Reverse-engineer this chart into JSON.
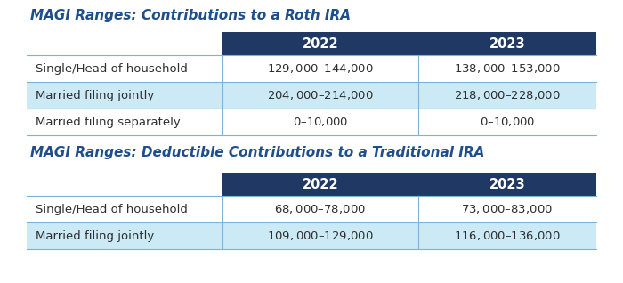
{
  "title1": "MAGI Ranges: Contributions to a Roth IRA",
  "title2": "MAGI Ranges: Deductible Contributions to a Traditional IRA",
  "title_color": "#1f4e8c",
  "header_bg": "#1f3864",
  "header_text_color": "#ffffff",
  "header_labels": [
    "2022",
    "2023"
  ],
  "border_color": "#7fb3d3",
  "text_color": "#2e2e2e",
  "table1_rows": [
    [
      "Single/Head of household",
      "$1'29,000–$144,000",
      "$138,000–$153,000"
    ],
    [
      "Married filing jointly",
      "$204,000–$214,000",
      "$218,000–$228,000"
    ],
    [
      "Married filing separately",
      "$0–$10,000",
      "$0–$10,000"
    ]
  ],
  "table1_row_colors": [
    "#ffffff",
    "#cceaf5",
    "#ffffff"
  ],
  "table2_rows": [
    [
      "Single/Head of household",
      "$68,000–$78,000",
      "$73,000–$83,000"
    ],
    [
      "Married filing jointly",
      "$109,000–$129,000",
      "$116,000–$136,000"
    ]
  ],
  "table2_row_colors": [
    "#ffffff",
    "#cceaf5"
  ],
  "background_color": "#ffffff"
}
